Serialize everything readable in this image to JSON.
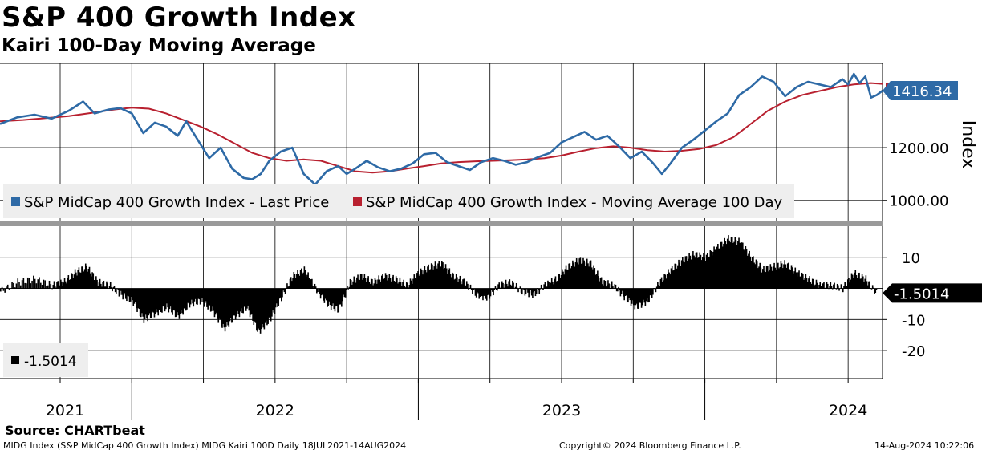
{
  "title": "S&P 400 Growth Index",
  "subtitle": "Kairi 100-Day Moving Average",
  "source": "Source: CHARTbeat",
  "footer": {
    "left": "MIDG Index (S&P MidCap 400 Growth Index) MIDG Kairi 100D  Daily 18JUL2021-14AUG2024",
    "center": "Copyright© 2024 Bloomberg Finance L.P.",
    "right": "14-Aug-2024 10:22:06"
  },
  "colors": {
    "price": "#2e6aa6",
    "ma": "#b8202f",
    "kairi": "#000000",
    "grid": "#000000",
    "legend_bg": "#eeeeee"
  },
  "chart_data": [
    {
      "type": "line",
      "panel": "upper",
      "ylabel": "Index",
      "ylim": [
        920,
        1520
      ],
      "yticks": [
        1000,
        1200
      ],
      "ytick_labels": [
        "1000.00",
        "1200.00"
      ],
      "legend": [
        "S&P MidCap 400 Growth Index - Last Price",
        "S&P MidCap 400 Growth Index - Moving Average 100 Day"
      ],
      "last_value_label": "1416.34",
      "x_range": [
        2021.54,
        2024.62
      ],
      "series": [
        {
          "name": "S&P MidCap 400 Growth Index - Last Price",
          "x": [
            2021.54,
            2021.6,
            2021.66,
            2021.72,
            2021.78,
            2021.83,
            2021.87,
            2021.92,
            2021.96,
            2022.0,
            2022.04,
            2022.08,
            2022.12,
            2022.16,
            2022.19,
            2022.23,
            2022.27,
            2022.31,
            2022.35,
            2022.39,
            2022.42,
            2022.45,
            2022.48,
            2022.52,
            2022.56,
            2022.6,
            2022.64,
            2022.68,
            2022.72,
            2022.75,
            2022.78,
            2022.82,
            2022.86,
            2022.9,
            2022.94,
            2022.98,
            2023.02,
            2023.06,
            2023.1,
            2023.14,
            2023.18,
            2023.22,
            2023.26,
            2023.3,
            2023.34,
            2023.38,
            2023.42,
            2023.46,
            2023.5,
            2023.54,
            2023.58,
            2023.62,
            2023.66,
            2023.7,
            2023.74,
            2023.78,
            2023.82,
            2023.85,
            2023.88,
            2023.92,
            2023.96,
            2024.0,
            2024.04,
            2024.08,
            2024.12,
            2024.16,
            2024.2,
            2024.24,
            2024.28,
            2024.32,
            2024.36,
            2024.4,
            2024.44,
            2024.48,
            2024.5,
            2024.52,
            2024.54,
            2024.56,
            2024.58,
            2024.6,
            2024.62
          ],
          "values": [
            1290,
            1315,
            1325,
            1310,
            1340,
            1375,
            1330,
            1345,
            1350,
            1330,
            1255,
            1295,
            1280,
            1245,
            1300,
            1230,
            1160,
            1200,
            1120,
            1085,
            1080,
            1100,
            1150,
            1185,
            1200,
            1100,
            1060,
            1110,
            1130,
            1100,
            1120,
            1150,
            1125,
            1110,
            1120,
            1140,
            1175,
            1180,
            1145,
            1130,
            1115,
            1145,
            1160,
            1150,
            1135,
            1145,
            1165,
            1180,
            1220,
            1240,
            1260,
            1230,
            1245,
            1205,
            1160,
            1185,
            1140,
            1100,
            1140,
            1200,
            1230,
            1265,
            1300,
            1330,
            1400,
            1430,
            1470,
            1450,
            1395,
            1430,
            1450,
            1440,
            1430,
            1460,
            1440,
            1480,
            1445,
            1470,
            1390,
            1400,
            1416
          ]
        },
        {
          "name": "S&P MidCap 400 Growth Index - Moving Average 100 Day",
          "x": [
            2021.54,
            2021.62,
            2021.7,
            2021.78,
            2021.86,
            2021.94,
            2022.0,
            2022.06,
            2022.12,
            2022.18,
            2022.24,
            2022.3,
            2022.36,
            2022.42,
            2022.48,
            2022.54,
            2022.6,
            2022.66,
            2022.72,
            2022.78,
            2022.84,
            2022.9,
            2022.96,
            2023.02,
            2023.08,
            2023.14,
            2023.2,
            2023.26,
            2023.32,
            2023.38,
            2023.44,
            2023.5,
            2023.56,
            2023.62,
            2023.68,
            2023.74,
            2023.8,
            2023.86,
            2023.92,
            2023.98,
            2024.04,
            2024.1,
            2024.16,
            2024.22,
            2024.28,
            2024.34,
            2024.4,
            2024.46,
            2024.52,
            2024.58,
            2024.62
          ],
          "values": [
            1300,
            1305,
            1312,
            1320,
            1332,
            1345,
            1352,
            1348,
            1330,
            1305,
            1280,
            1250,
            1215,
            1180,
            1160,
            1150,
            1155,
            1150,
            1130,
            1110,
            1105,
            1110,
            1120,
            1130,
            1140,
            1145,
            1148,
            1150,
            1152,
            1155,
            1160,
            1170,
            1185,
            1198,
            1205,
            1200,
            1190,
            1185,
            1188,
            1195,
            1210,
            1240,
            1290,
            1340,
            1375,
            1400,
            1415,
            1430,
            1440,
            1445,
            1442
          ]
        }
      ]
    },
    {
      "type": "bar",
      "panel": "lower",
      "name": "Kairi 100D",
      "ylim": [
        -29,
        20
      ],
      "yticks": [
        10,
        -10,
        -20
      ],
      "ytick_labels": [
        "10",
        "-10",
        "-20"
      ],
      "legend": [
        "-1.5014"
      ],
      "last_value_label": "-1.5014",
      "x": [
        2021.54,
        2021.6,
        2021.66,
        2021.72,
        2021.76,
        2021.8,
        2021.84,
        2021.88,
        2021.92,
        2021.96,
        2022.0,
        2022.04,
        2022.08,
        2022.12,
        2022.16,
        2022.2,
        2022.24,
        2022.28,
        2022.32,
        2022.36,
        2022.4,
        2022.44,
        2022.48,
        2022.52,
        2022.56,
        2022.6,
        2022.64,
        2022.68,
        2022.72,
        2022.76,
        2022.8,
        2022.84,
        2022.88,
        2022.92,
        2022.96,
        2023.0,
        2023.04,
        2023.08,
        2023.12,
        2023.16,
        2023.2,
        2023.24,
        2023.28,
        2023.32,
        2023.36,
        2023.4,
        2023.44,
        2023.48,
        2023.52,
        2023.56,
        2023.6,
        2023.64,
        2023.68,
        2023.72,
        2023.76,
        2023.8,
        2023.84,
        2023.88,
        2023.92,
        2023.96,
        2024.0,
        2024.04,
        2024.08,
        2024.12,
        2024.16,
        2024.2,
        2024.24,
        2024.28,
        2024.32,
        2024.36,
        2024.4,
        2024.44,
        2024.48,
        2024.52,
        2024.56,
        2024.6
      ],
      "values": [
        -1,
        2,
        3,
        1,
        2,
        5,
        7,
        2,
        1,
        -2,
        -4,
        -10,
        -8,
        -6,
        -9,
        -5,
        -4,
        -7,
        -13,
        -9,
        -6,
        -14,
        -10,
        -3,
        4,
        6,
        0,
        -5,
        -7,
        2,
        4,
        2,
        4,
        3,
        1,
        5,
        7,
        8,
        4,
        2,
        -2,
        -3,
        1,
        2,
        -1,
        -2,
        1,
        3,
        7,
        9,
        8,
        2,
        1,
        -3,
        -6,
        -4,
        2,
        6,
        9,
        11,
        10,
        13,
        16,
        15,
        10,
        6,
        7,
        8,
        5,
        3,
        1,
        1,
        0,
        5,
        3,
        -2
      ]
    }
  ],
  "x_axis": {
    "year_labels": [
      "2021",
      "2022",
      "2023",
      "2024"
    ],
    "year_label_pos": [
      2021.77,
      2022.5,
      2023.5,
      2024.5
    ],
    "year_boundaries": [
      2022.0,
      2023.0,
      2024.0
    ]
  }
}
